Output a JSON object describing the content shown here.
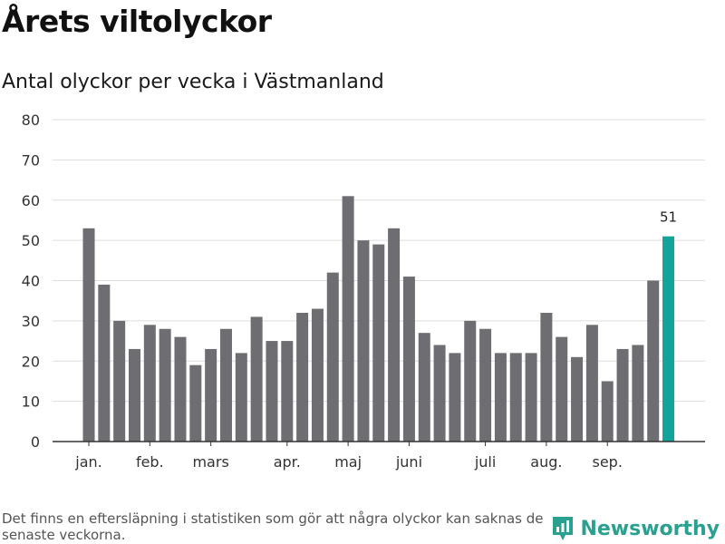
{
  "title": "Årets viltolyckor",
  "subtitle": "Antal olyckor per vecka i Västmanland",
  "footnote": "Det finns en eftersläpning i statistiken som gör att några olyckor kan saknas de senaste veckorna.",
  "brand": {
    "name": "Newsworthy",
    "icon": "newsworthy-logo-icon"
  },
  "colors": {
    "bar": "#6e6d72",
    "highlight": "#12a39a",
    "grid": "#dddddd",
    "axis": "#333333",
    "brand": "#2aa090"
  },
  "chart_data": {
    "type": "bar",
    "title": "Årets viltolyckor",
    "subtitle": "Antal olyckor per vecka i Västmanland",
    "xlabel": "",
    "ylabel": "",
    "ylim": [
      0,
      80
    ],
    "yticks": [
      0,
      10,
      20,
      30,
      40,
      50,
      60,
      70,
      80
    ],
    "grid": true,
    "weeks": [
      1,
      2,
      3,
      4,
      5,
      6,
      7,
      8,
      9,
      10,
      11,
      12,
      13,
      14,
      15,
      16,
      17,
      18,
      19,
      20,
      21,
      22,
      23,
      24,
      25,
      26,
      27,
      28,
      29,
      30,
      31,
      32,
      33,
      34,
      35,
      36,
      37,
      38,
      39
    ],
    "values": [
      53,
      39,
      30,
      23,
      29,
      28,
      26,
      19,
      23,
      28,
      22,
      31,
      25,
      25,
      32,
      33,
      42,
      61,
      50,
      49,
      53,
      41,
      27,
      24,
      22,
      30,
      28,
      22,
      22,
      22,
      32,
      26,
      21,
      29,
      15,
      23,
      24,
      40,
      51
    ],
    "highlight_index": 38,
    "highlight_label": "51",
    "month_labels": [
      {
        "label": "jan.",
        "at_week": 1
      },
      {
        "label": "feb.",
        "at_week": 5
      },
      {
        "label": "mars",
        "at_week": 9
      },
      {
        "label": "apr.",
        "at_week": 14
      },
      {
        "label": "maj",
        "at_week": 18
      },
      {
        "label": "juni",
        "at_week": 22
      },
      {
        "label": "juli",
        "at_week": 27
      },
      {
        "label": "aug.",
        "at_week": 31
      },
      {
        "label": "sep.",
        "at_week": 35
      }
    ]
  }
}
